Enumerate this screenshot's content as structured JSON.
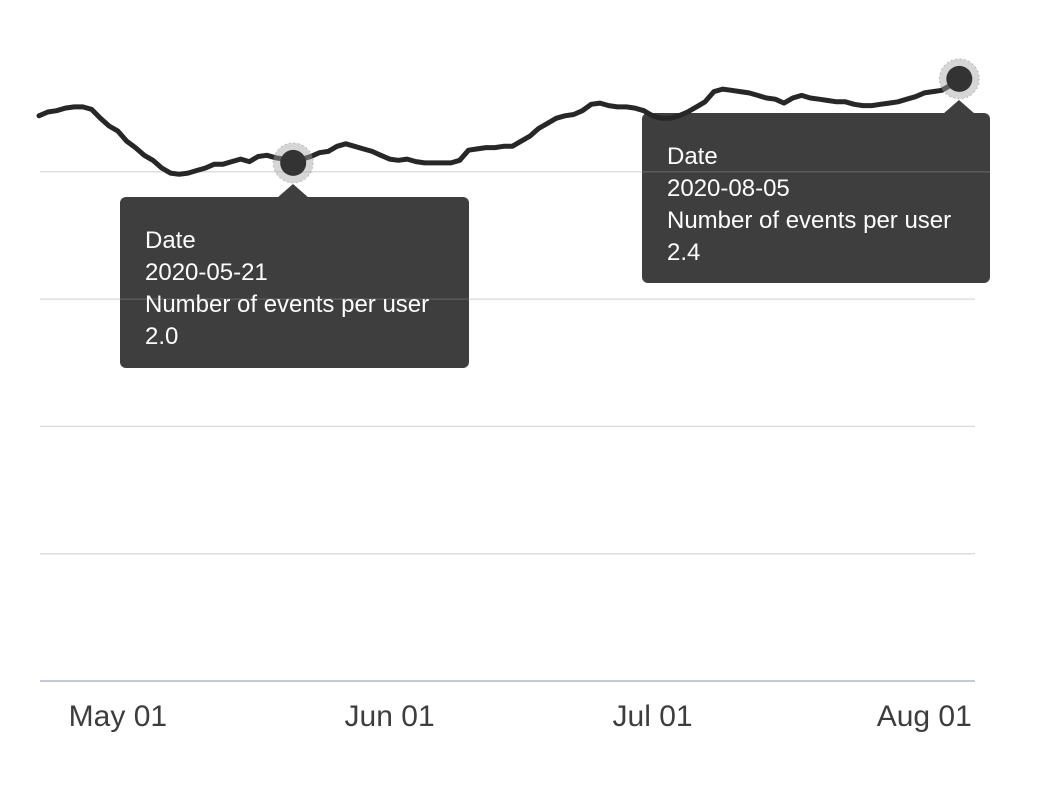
{
  "chart_data": {
    "type": "line",
    "title": "",
    "xlabel": "",
    "ylabel": "",
    "grid": true,
    "legend_position": "none",
    "x_start_date": "2020-04-22",
    "x_cadence": "daily",
    "x_tick_labels": [
      "May 01",
      "Jun 01",
      "Jul 01",
      "Aug 01"
    ],
    "x_ticks": [
      {
        "label": "May 01",
        "day_index": 9
      },
      {
        "label": "Jun 01",
        "day_index": 40
      },
      {
        "label": "Jul 01",
        "day_index": 70
      },
      {
        "label": "Aug 01",
        "day_index": 101
      }
    ],
    "ylim": [
      0,
      2.67
    ],
    "gridline_values": [
      0.5,
      1.0,
      1.5,
      2.0
    ],
    "axis_baseline_value": 0,
    "series": [
      {
        "name": "Number of events per user",
        "values": [
          2.22,
          2.235,
          2.24,
          2.25,
          2.255,
          2.255,
          2.245,
          2.21,
          2.18,
          2.16,
          2.12,
          2.095,
          2.065,
          2.045,
          2.015,
          1.995,
          1.99,
          1.995,
          2.005,
          2.015,
          2.03,
          2.03,
          2.04,
          2.05,
          2.04,
          2.06,
          2.065,
          2.055,
          2.05,
          2.035,
          2.05,
          2.06,
          2.075,
          2.08,
          2.1,
          2.11,
          2.1,
          2.09,
          2.08,
          2.065,
          2.05,
          2.045,
          2.05,
          2.04,
          2.035,
          2.035,
          2.035,
          2.035,
          2.045,
          2.085,
          2.09,
          2.095,
          2.095,
          2.1,
          2.1,
          2.12,
          2.14,
          2.17,
          2.19,
          2.21,
          2.22,
          2.225,
          2.24,
          2.265,
          2.27,
          2.26,
          2.255,
          2.255,
          2.25,
          2.24,
          2.22,
          2.21,
          2.21,
          2.22,
          2.235,
          2.255,
          2.275,
          2.315,
          2.325,
          2.32,
          2.315,
          2.31,
          2.3,
          2.29,
          2.285,
          2.27,
          2.29,
          2.3,
          2.29,
          2.285,
          2.28,
          2.275,
          2.275,
          2.265,
          2.26,
          2.26,
          2.265,
          2.27,
          2.275,
          2.285,
          2.295,
          2.31,
          2.315,
          2.32,
          2.34,
          2.365
        ]
      }
    ],
    "tooltips": [
      {
        "point_index": 29,
        "field_label": "Date",
        "date": "2020-05-21",
        "metric_label": "Number of events per user",
        "value": "2.0"
      },
      {
        "point_index": 105,
        "field_label": "Date",
        "date": "2020-08-05",
        "metric_label": "Number of events per user",
        "value": "2.4"
      }
    ],
    "colors": {
      "line": "#272727",
      "marker_dot": "#333333",
      "marker_halo": "rgba(164,164,164,0.45)",
      "gridline": "#dedede",
      "axis_line": "#bfcadc",
      "tooltip_bg": "#3e3e3e",
      "tooltip_text": "#fcfcfc",
      "tick_text": "#3d3d3d"
    }
  }
}
